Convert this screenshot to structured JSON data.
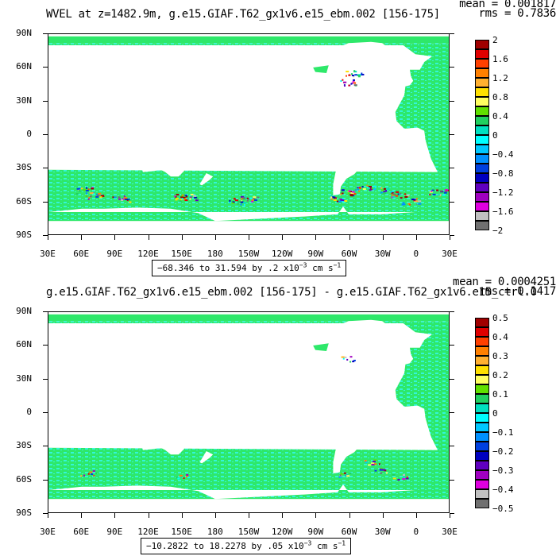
{
  "panels": [
    {
      "id": "top",
      "title": "WVEL at z=1482.9m, g.e15.GIAF.T62_gx1v6.e15_ebm.002 [156-175]",
      "mean": "mean = 0.001817",
      "rms": "rms = 0.7836",
      "range_text": "−68.346 to 31.594 by .2 x10",
      "range_exp": "−3",
      "range_units": " cm s",
      "range_units_exp": "−1",
      "colorbar_labels": [
        "2",
        "1.6",
        "1.2",
        "0.8",
        "0.4",
        "0",
        "−0.4",
        "−0.8",
        "−1.2",
        "−1.6",
        "−2"
      ]
    },
    {
      "id": "bottom",
      "title": "g.e15.GIAF.T62_gx1v6.e15_ebm.002 [156-175] - g.e15.GIAF.T62_gx1v6.e15_ctrl.0",
      "mean": "mean = 0.0004251",
      "rms": "rms = 0.1417",
      "range_text": "−10.2822 to 18.2278 by .05 x10",
      "range_exp": "−3",
      "range_units": " cm s",
      "range_units_exp": "−1",
      "colorbar_labels": [
        "0.5",
        "0.4",
        "0.3",
        "0.2",
        "0.1",
        "0",
        "−0.1",
        "−0.2",
        "−0.3",
        "−0.4",
        "−0.5"
      ]
    }
  ],
  "lat_labels": [
    "90N",
    "60N",
    "30N",
    "0",
    "30S",
    "60S",
    "90S"
  ],
  "lon_labels": [
    "30E",
    "60E",
    "90E",
    "120E",
    "150E",
    "180",
    "150W",
    "120W",
    "90W",
    "60W",
    "30W",
    "0",
    "30E"
  ],
  "colorbar_colors": [
    "#a00000",
    "#e00000",
    "#ff4000",
    "#ff8000",
    "#ffb030",
    "#ffe000",
    "#ffff60",
    "#60e000",
    "#20d060",
    "#00e0c0",
    "#00ffff",
    "#00c8ff",
    "#0090ff",
    "#0040e0",
    "#0000c0",
    "#6000c0",
    "#a000c0",
    "#e000e0",
    "#c0c0c0",
    "#707070"
  ],
  "colors": {
    "ocean_green": "#2ee86a",
    "ocean_cyan": "#33f5d8",
    "land": "#ffffff"
  }
}
